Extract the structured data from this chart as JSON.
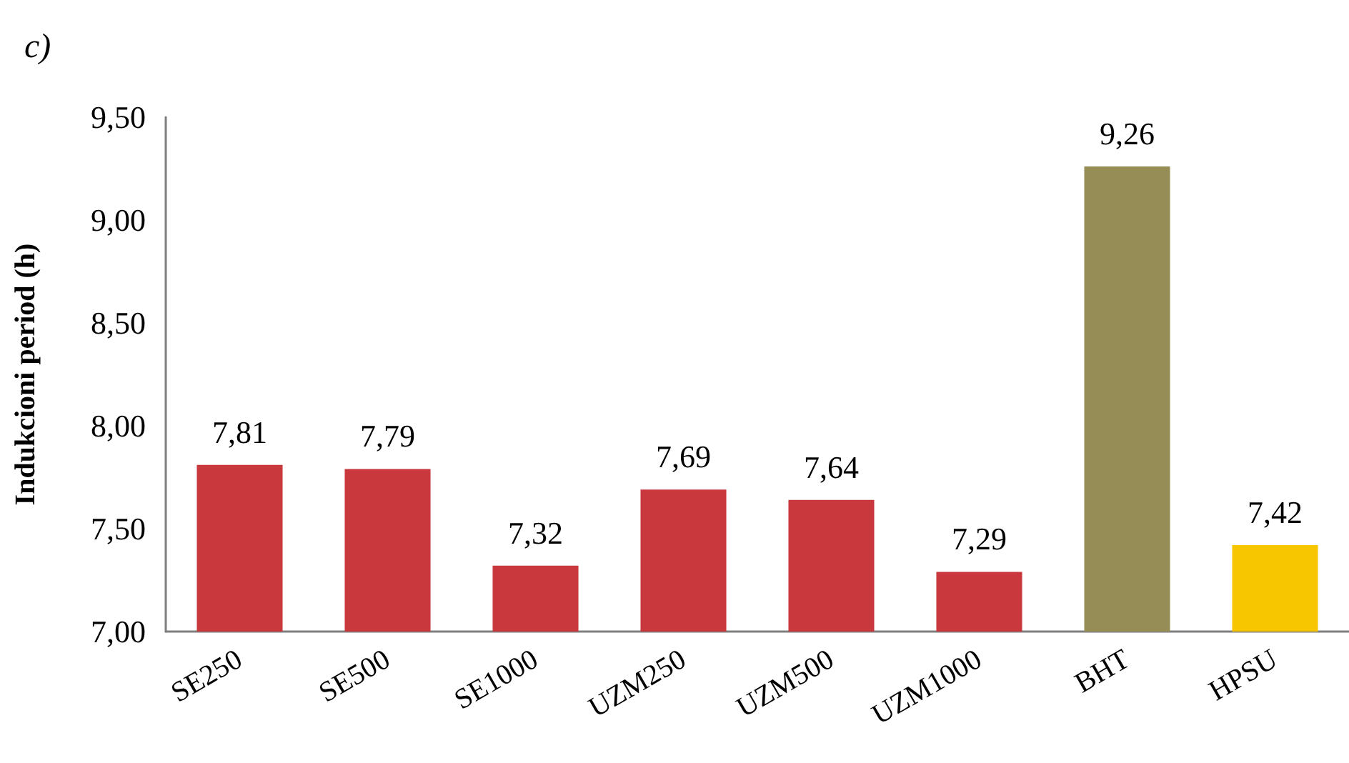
{
  "chart_data": {
    "type": "bar",
    "title": "c)",
    "ylabel": "Indukcioni period (h)",
    "categories": [
      "SE250",
      "SE500",
      "SE1000",
      "UZM250",
      "UZM500",
      "UZM1000",
      "BHT",
      "HPSU"
    ],
    "values": [
      7.81,
      7.79,
      7.32,
      7.69,
      7.64,
      7.29,
      9.26,
      7.42
    ],
    "colors": [
      "#c8383c",
      "#c8383c",
      "#c8383c",
      "#c8383c",
      "#c8383c",
      "#c8383c",
      "#958d55",
      "#f7c600"
    ],
    "value_labels": [
      "7,81",
      "7,79",
      "7,32",
      "7,69",
      "7,64",
      "7,29",
      "9,26",
      "7,42"
    ],
    "ylim": [
      7,
      9.5
    ],
    "yticks": [
      {
        "value": 7,
        "label": "7,00"
      },
      {
        "value": 7.5,
        "label": "7,50"
      },
      {
        "value": 8,
        "label": "8,00"
      },
      {
        "value": 8.5,
        "label": "8,50"
      },
      {
        "value": 9,
        "label": "9,00"
      },
      {
        "value": 9.5,
        "label": "9,50"
      }
    ],
    "grid": false
  }
}
